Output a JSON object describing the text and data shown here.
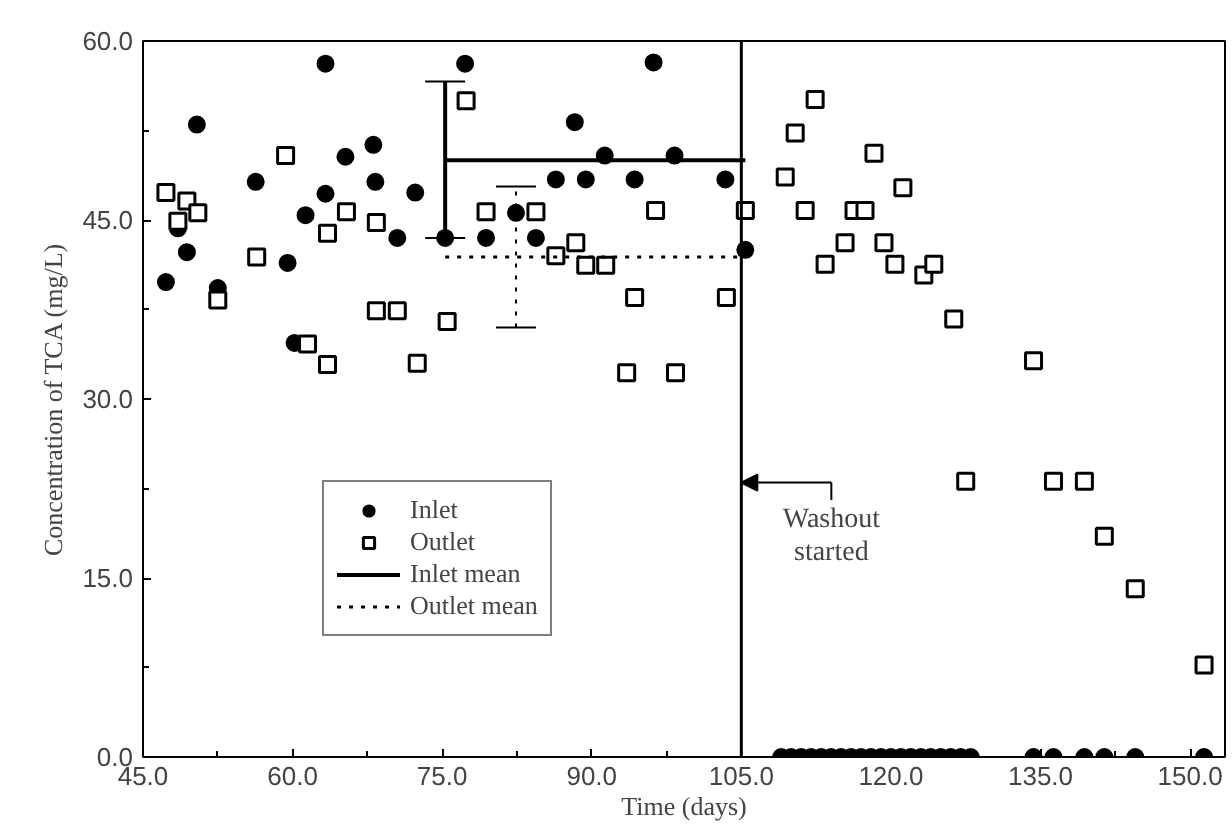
{
  "chart_data": {
    "type": "scatter",
    "xlabel": "Time (days)",
    "ylabel": "Concentration of TCA (mg/L)",
    "xlim": [
      45,
      153.5
    ],
    "ylim": [
      0,
      60
    ],
    "xticks": [
      {
        "value": 45,
        "label": "45.0"
      },
      {
        "value": 60,
        "label": "60.0"
      },
      {
        "value": 75,
        "label": "75.0"
      },
      {
        "value": 90,
        "label": "90.0"
      },
      {
        "value": 105,
        "label": "105.0"
      },
      {
        "value": 120,
        "label": "120.0"
      },
      {
        "value": 135,
        "label": "135.0"
      },
      {
        "value": 150,
        "label": "150.0"
      }
    ],
    "yticks": [
      {
        "value": 0,
        "label": "0.0"
      },
      {
        "value": 15,
        "label": "15.0"
      },
      {
        "value": 30,
        "label": "30.0"
      },
      {
        "value": 45,
        "label": "45.0"
      },
      {
        "value": 60,
        "label": "60.0"
      }
    ],
    "grid": false,
    "legend": "bottom left",
    "series": [
      {
        "name": "Inlet",
        "marker": "circle",
        "color": "#000000",
        "x": [
          47.3,
          48.5,
          49.4,
          50.4,
          52.5,
          56.3,
          59.5,
          60.2,
          61.3,
          63.3,
          63.3,
          65.3,
          68.1,
          68.3,
          70.5,
          72.3,
          75.3,
          77.3,
          79.4,
          82.4,
          84.4,
          86.4,
          88.3,
          89.4,
          91.3,
          94.3,
          96.2,
          98.3,
          103.4,
          105.4,
          109,
          110,
          111,
          112,
          113,
          114,
          115,
          116,
          117,
          118,
          119,
          120,
          121,
          122,
          123,
          124,
          125,
          126,
          127,
          128,
          134.3,
          136.3,
          139.4,
          141.4,
          144.5,
          151.4
        ],
        "values": [
          39.8,
          44.3,
          42.3,
          53.0,
          39.3,
          48.2,
          41.4,
          34.7,
          45.4,
          47.2,
          58.1,
          50.3,
          51.3,
          48.2,
          43.5,
          47.3,
          43.5,
          58.1,
          43.5,
          45.6,
          43.5,
          48.4,
          53.2,
          48.4,
          50.4,
          48.4,
          58.2,
          50.4,
          48.4,
          42.5,
          0,
          0,
          0,
          0,
          0,
          0,
          0,
          0,
          0,
          0,
          0,
          0,
          0,
          0,
          0,
          0,
          0,
          0,
          0,
          0,
          0,
          0,
          0,
          0,
          0,
          0
        ]
      },
      {
        "name": "Outlet",
        "marker": "square",
        "color": "#000000",
        "x": [
          47.3,
          48.5,
          49.4,
          50.5,
          52.5,
          56.4,
          59.3,
          61.5,
          63.5,
          63.5,
          65.4,
          68.4,
          68.4,
          70.5,
          72.5,
          75.5,
          77.4,
          79.4,
          84.4,
          86.4,
          88.4,
          89.4,
          91.4,
          93.5,
          94.3,
          96.4,
          98.4,
          103.5,
          105.4,
          109.4,
          110.4,
          111.4,
          112.4,
          113.4,
          115.4,
          116.3,
          117.4,
          118.3,
          119.3,
          120.4,
          121.2,
          123.3,
          124.3,
          126.3,
          127.5,
          134.3,
          136.3,
          139.4,
          141.4,
          144.5,
          151.4
        ],
        "values": [
          47.3,
          44.9,
          46.6,
          45.6,
          38.3,
          41.9,
          50.4,
          34.6,
          32.9,
          43.9,
          45.7,
          44.8,
          37.4,
          37.4,
          33.0,
          36.5,
          55.0,
          45.7,
          45.7,
          42.0,
          43.1,
          41.2,
          41.2,
          32.2,
          38.5,
          45.8,
          32.2,
          38.5,
          45.8,
          48.6,
          52.3,
          45.8,
          55.1,
          41.3,
          43.1,
          45.8,
          45.8,
          50.6,
          43.1,
          41.3,
          47.7,
          40.4,
          41.3,
          36.7,
          23.1,
          33.2,
          23.1,
          23.1,
          18.5,
          14.1,
          7.7
        ]
      },
      {
        "name": "Inlet mean",
        "type": "line",
        "line_style": "solid",
        "color": "#000000",
        "x": [
          75.3,
          105.4
        ],
        "values": [
          50.0,
          50.0
        ],
        "errors": [
          [
            43.5,
            56.6
          ],
          null
        ]
      },
      {
        "name": "Outlet mean",
        "type": "line",
        "line_style": "dotted",
        "color": "#000000",
        "x": [
          75.3,
          82.4,
          105.4
        ],
        "values": [
          41.9,
          41.9,
          41.9
        ],
        "errors": [
          null,
          [
            36.0,
            47.8
          ],
          null
        ]
      }
    ],
    "ref_lines": [
      {
        "axis": "x",
        "value": 105,
        "color": "#000000"
      }
    ],
    "annotations": [
      {
        "text": "Washout started",
        "x": 105,
        "y": 23
      }
    ]
  }
}
